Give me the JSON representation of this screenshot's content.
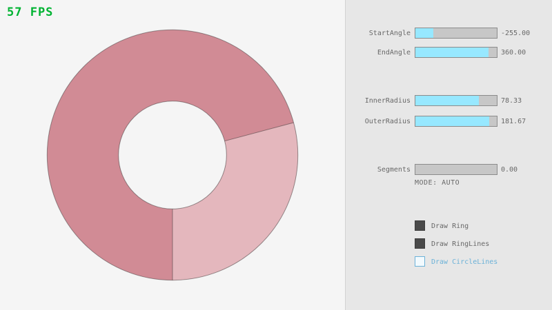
{
  "fps_label": "57 FPS",
  "controls": {
    "sliders": [
      {
        "label": "StartAngle",
        "value": "-255.00",
        "fill_pct": 21.7
      },
      {
        "label": "EndAngle",
        "value": "360.00",
        "fill_pct": 90.0
      },
      {
        "label": "InnerRadius",
        "value": "78.33",
        "fill_pct": 78.3
      },
      {
        "label": "OuterRadius",
        "value": "181.67",
        "fill_pct": 90.8
      },
      {
        "label": "Segments",
        "value": "0.00",
        "fill_pct": 0.0
      }
    ],
    "mode_label": "MODE: AUTO",
    "checkboxes": [
      {
        "label": "Draw Ring",
        "checked": true
      },
      {
        "label": "Draw RingLines",
        "checked": true
      },
      {
        "label": "Draw CircleLines",
        "checked": false
      }
    ]
  },
  "ring": {
    "start_angle": -255.0,
    "end_angle": 360.0,
    "inner_radius": 78.33,
    "outer_radius": 181.67,
    "segments": 0
  },
  "colors": {
    "background": "#f5f5f5",
    "panel_background": "#e7e7e7",
    "ring_single_pass": "#e4b7bd",
    "ring_double_pass": "#d18b95",
    "slider_fill": "#97e8ff",
    "slider_track": "#c7c7c7",
    "text_gray": "#686868",
    "accent_blue": "#6cb2d8",
    "fps_green": "#00b332"
  }
}
